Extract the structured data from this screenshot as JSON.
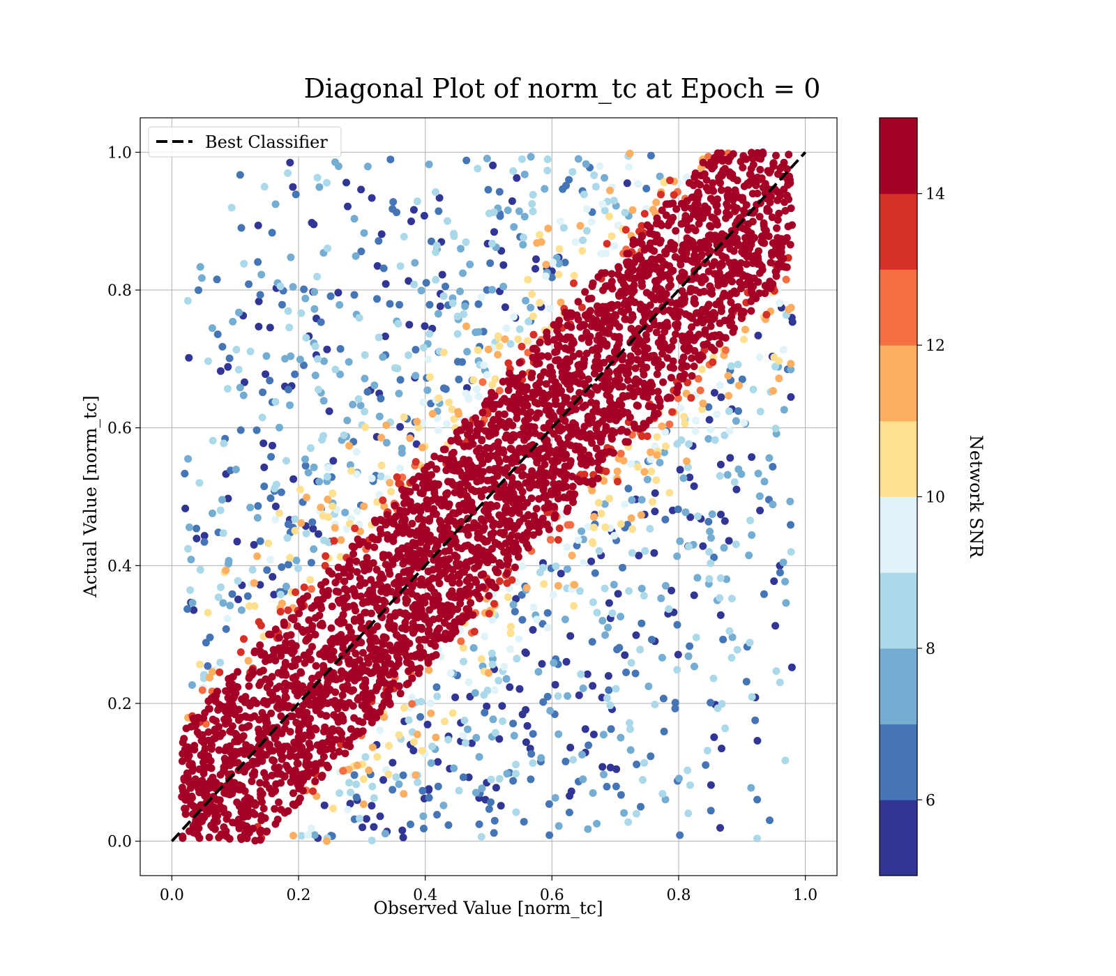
{
  "chart_data": {
    "type": "scatter",
    "title": "Diagonal Plot of norm_tc at Epoch = 0",
    "xlabel": "Observed Value [norm_tc]",
    "ylabel": "Actual Value [norm_tc]",
    "xlim": [
      -0.05,
      1.05
    ],
    "ylim": [
      -0.05,
      1.05
    ],
    "xticks": [
      0.0,
      0.2,
      0.4,
      0.6,
      0.8,
      1.0
    ],
    "yticks": [
      0.0,
      0.2,
      0.4,
      0.6,
      0.8,
      1.0
    ],
    "xtick_labels": [
      "0.0",
      "0.2",
      "0.4",
      "0.6",
      "0.8",
      "1.0"
    ],
    "ytick_labels": [
      "0.0",
      "0.2",
      "0.4",
      "0.6",
      "0.8",
      "1.0"
    ],
    "grid": true,
    "legend": {
      "placement": "top-left",
      "entries": [
        {
          "label": "Best Classifier",
          "style": "dashed",
          "color": "#000000"
        }
      ]
    },
    "reference_line": {
      "label": "Best Classifier",
      "x": [
        0.0,
        1.0
      ],
      "y": [
        0.0,
        1.0
      ]
    },
    "scatter_description": {
      "x_range": [
        0.0,
        1.0
      ],
      "y_range": [
        0.0,
        1.0
      ],
      "high_snr_band_halfwidth": 0.14,
      "color_by": "Network SNR"
    },
    "colorbar": {
      "label": "Network SNR",
      "range": [
        5,
        15
      ],
      "ticks": [
        6,
        8,
        10,
        12,
        14
      ],
      "tick_labels": [
        "6",
        "8",
        "10",
        "12",
        "14"
      ],
      "colors": [
        "#313695",
        "#4575b4",
        "#74add1",
        "#abd9e9",
        "#e0f3f8",
        "#fee090",
        "#fdae61",
        "#f46d43",
        "#d73027",
        "#a50026"
      ]
    }
  }
}
